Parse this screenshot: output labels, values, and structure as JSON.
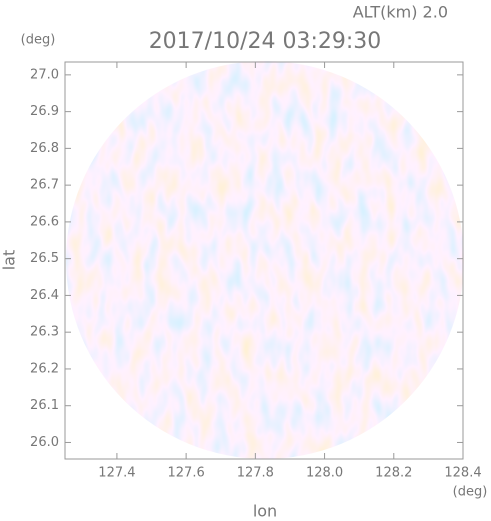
{
  "chart_data": {
    "type": "image",
    "title": "2017/10/24 03:29:30",
    "annotation": "ALT(km) 2.0",
    "xlabel": "lon",
    "ylabel": "lat",
    "x_unit": "(deg)",
    "y_unit": "(deg)",
    "xlim": [
      127.25,
      128.4
    ],
    "ylim": [
      25.955,
      27.035
    ],
    "xticks": [
      127.4,
      127.6,
      127.8,
      {
        "value": 128,
        "label": "128.0"
      },
      128.2,
      128.4
    ],
    "yticks": [
      {
        "value": 26,
        "label": "26.0"
      },
      26.1,
      26.2,
      26.3,
      26.4,
      26.5,
      26.6,
      26.7,
      26.8,
      26.9,
      {
        "value": 27,
        "label": "27.0"
      }
    ]
  }
}
